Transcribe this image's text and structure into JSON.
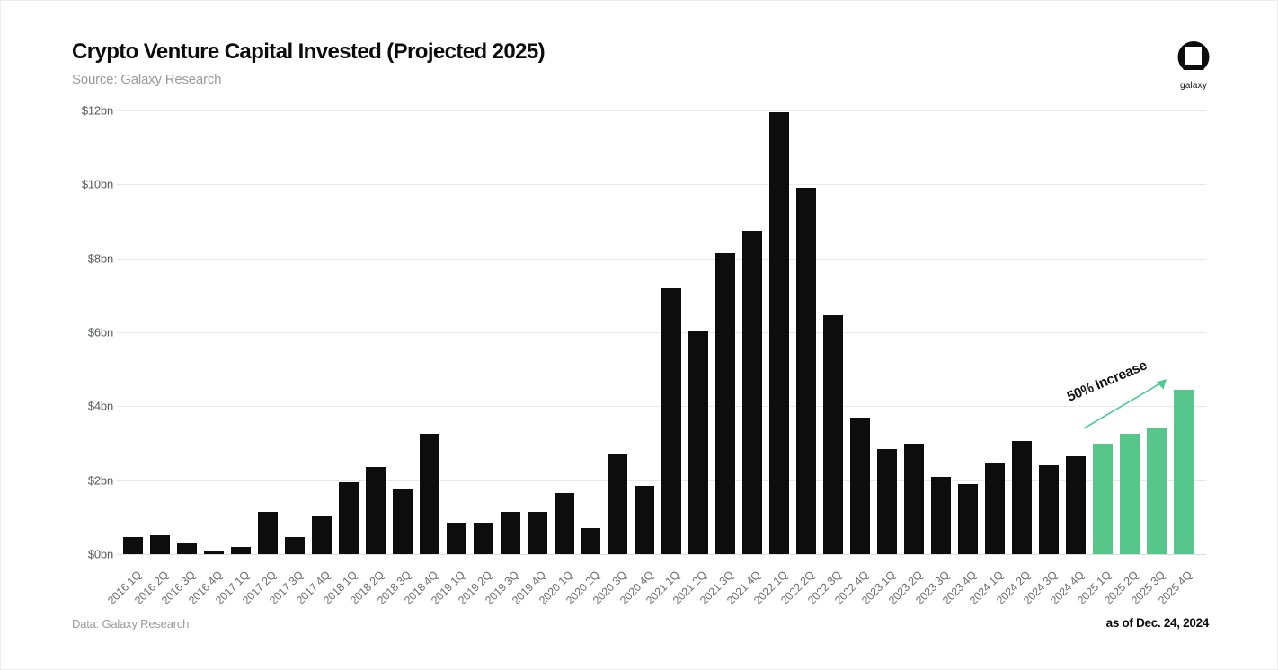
{
  "header": {
    "title": "Crypto Venture Capital Invested (Projected 2025)",
    "subtitle": "Source: Galaxy Research",
    "logo_text": "galaxy"
  },
  "footer": {
    "left": "Data: Galaxy Research",
    "right": "as of Dec. 24, 2024"
  },
  "annotation": {
    "label": "50% Increase"
  },
  "colors": {
    "bar_historical": "#0d0d0d",
    "bar_projected": "#57c68b",
    "arrow": "#4ecb93",
    "gridline": "#e8e8e8"
  },
  "chart_data": {
    "type": "bar",
    "title": "Crypto Venture Capital Invested (Projected 2025)",
    "xlabel": "",
    "ylabel": "",
    "unit": "USD billions",
    "ylim": [
      0,
      12
    ],
    "grid": "horizontal",
    "yticks": [
      {
        "label": "$0bn",
        "value": 0
      },
      {
        "label": "$2bn",
        "value": 2
      },
      {
        "label": "$4bn",
        "value": 4
      },
      {
        "label": "$6bn",
        "value": 6
      },
      {
        "label": "$8bn",
        "value": 8
      },
      {
        "label": "$10bn",
        "value": 10
      },
      {
        "label": "$12bn",
        "value": 12
      }
    ],
    "categories": [
      "2016 1Q",
      "2016 2Q",
      "2016 3Q",
      "2016 4Q",
      "2017 1Q",
      "2017 2Q",
      "2017 3Q",
      "2017 4Q",
      "2018 1Q",
      "2018 2Q",
      "2018 3Q",
      "2018 4Q",
      "2019 1Q",
      "2019 2Q",
      "2019 3Q",
      "2019 4Q",
      "2020 1Q",
      "2020 2Q",
      "2020 3Q",
      "2020 4Q",
      "2021 1Q",
      "2021 2Q",
      "2021 3Q",
      "2021 4Q",
      "2022 1Q",
      "2022 2Q",
      "2022 3Q",
      "2022 4Q",
      "2023 1Q",
      "2023 2Q",
      "2023 3Q",
      "2023 4Q",
      "2024 1Q",
      "2024 2Q",
      "2024 3Q",
      "2024 4Q",
      "2025 1Q",
      "2025 2Q",
      "2025 3Q",
      "2025 4Q"
    ],
    "values": [
      0.45,
      0.5,
      0.3,
      0.1,
      0.2,
      1.15,
      0.45,
      1.05,
      1.95,
      2.35,
      1.75,
      3.25,
      0.85,
      0.85,
      1.15,
      1.15,
      1.65,
      0.7,
      2.7,
      1.85,
      7.2,
      6.05,
      8.15,
      8.75,
      11.95,
      9.9,
      6.45,
      3.7,
      2.85,
      3.0,
      2.1,
      1.9,
      2.45,
      3.05,
      2.4,
      2.65,
      3.0,
      3.25,
      3.4,
      4.45
    ],
    "projected_from_index": 36,
    "series_note": "Bars from 2025 1Q onward are projected (green)"
  }
}
